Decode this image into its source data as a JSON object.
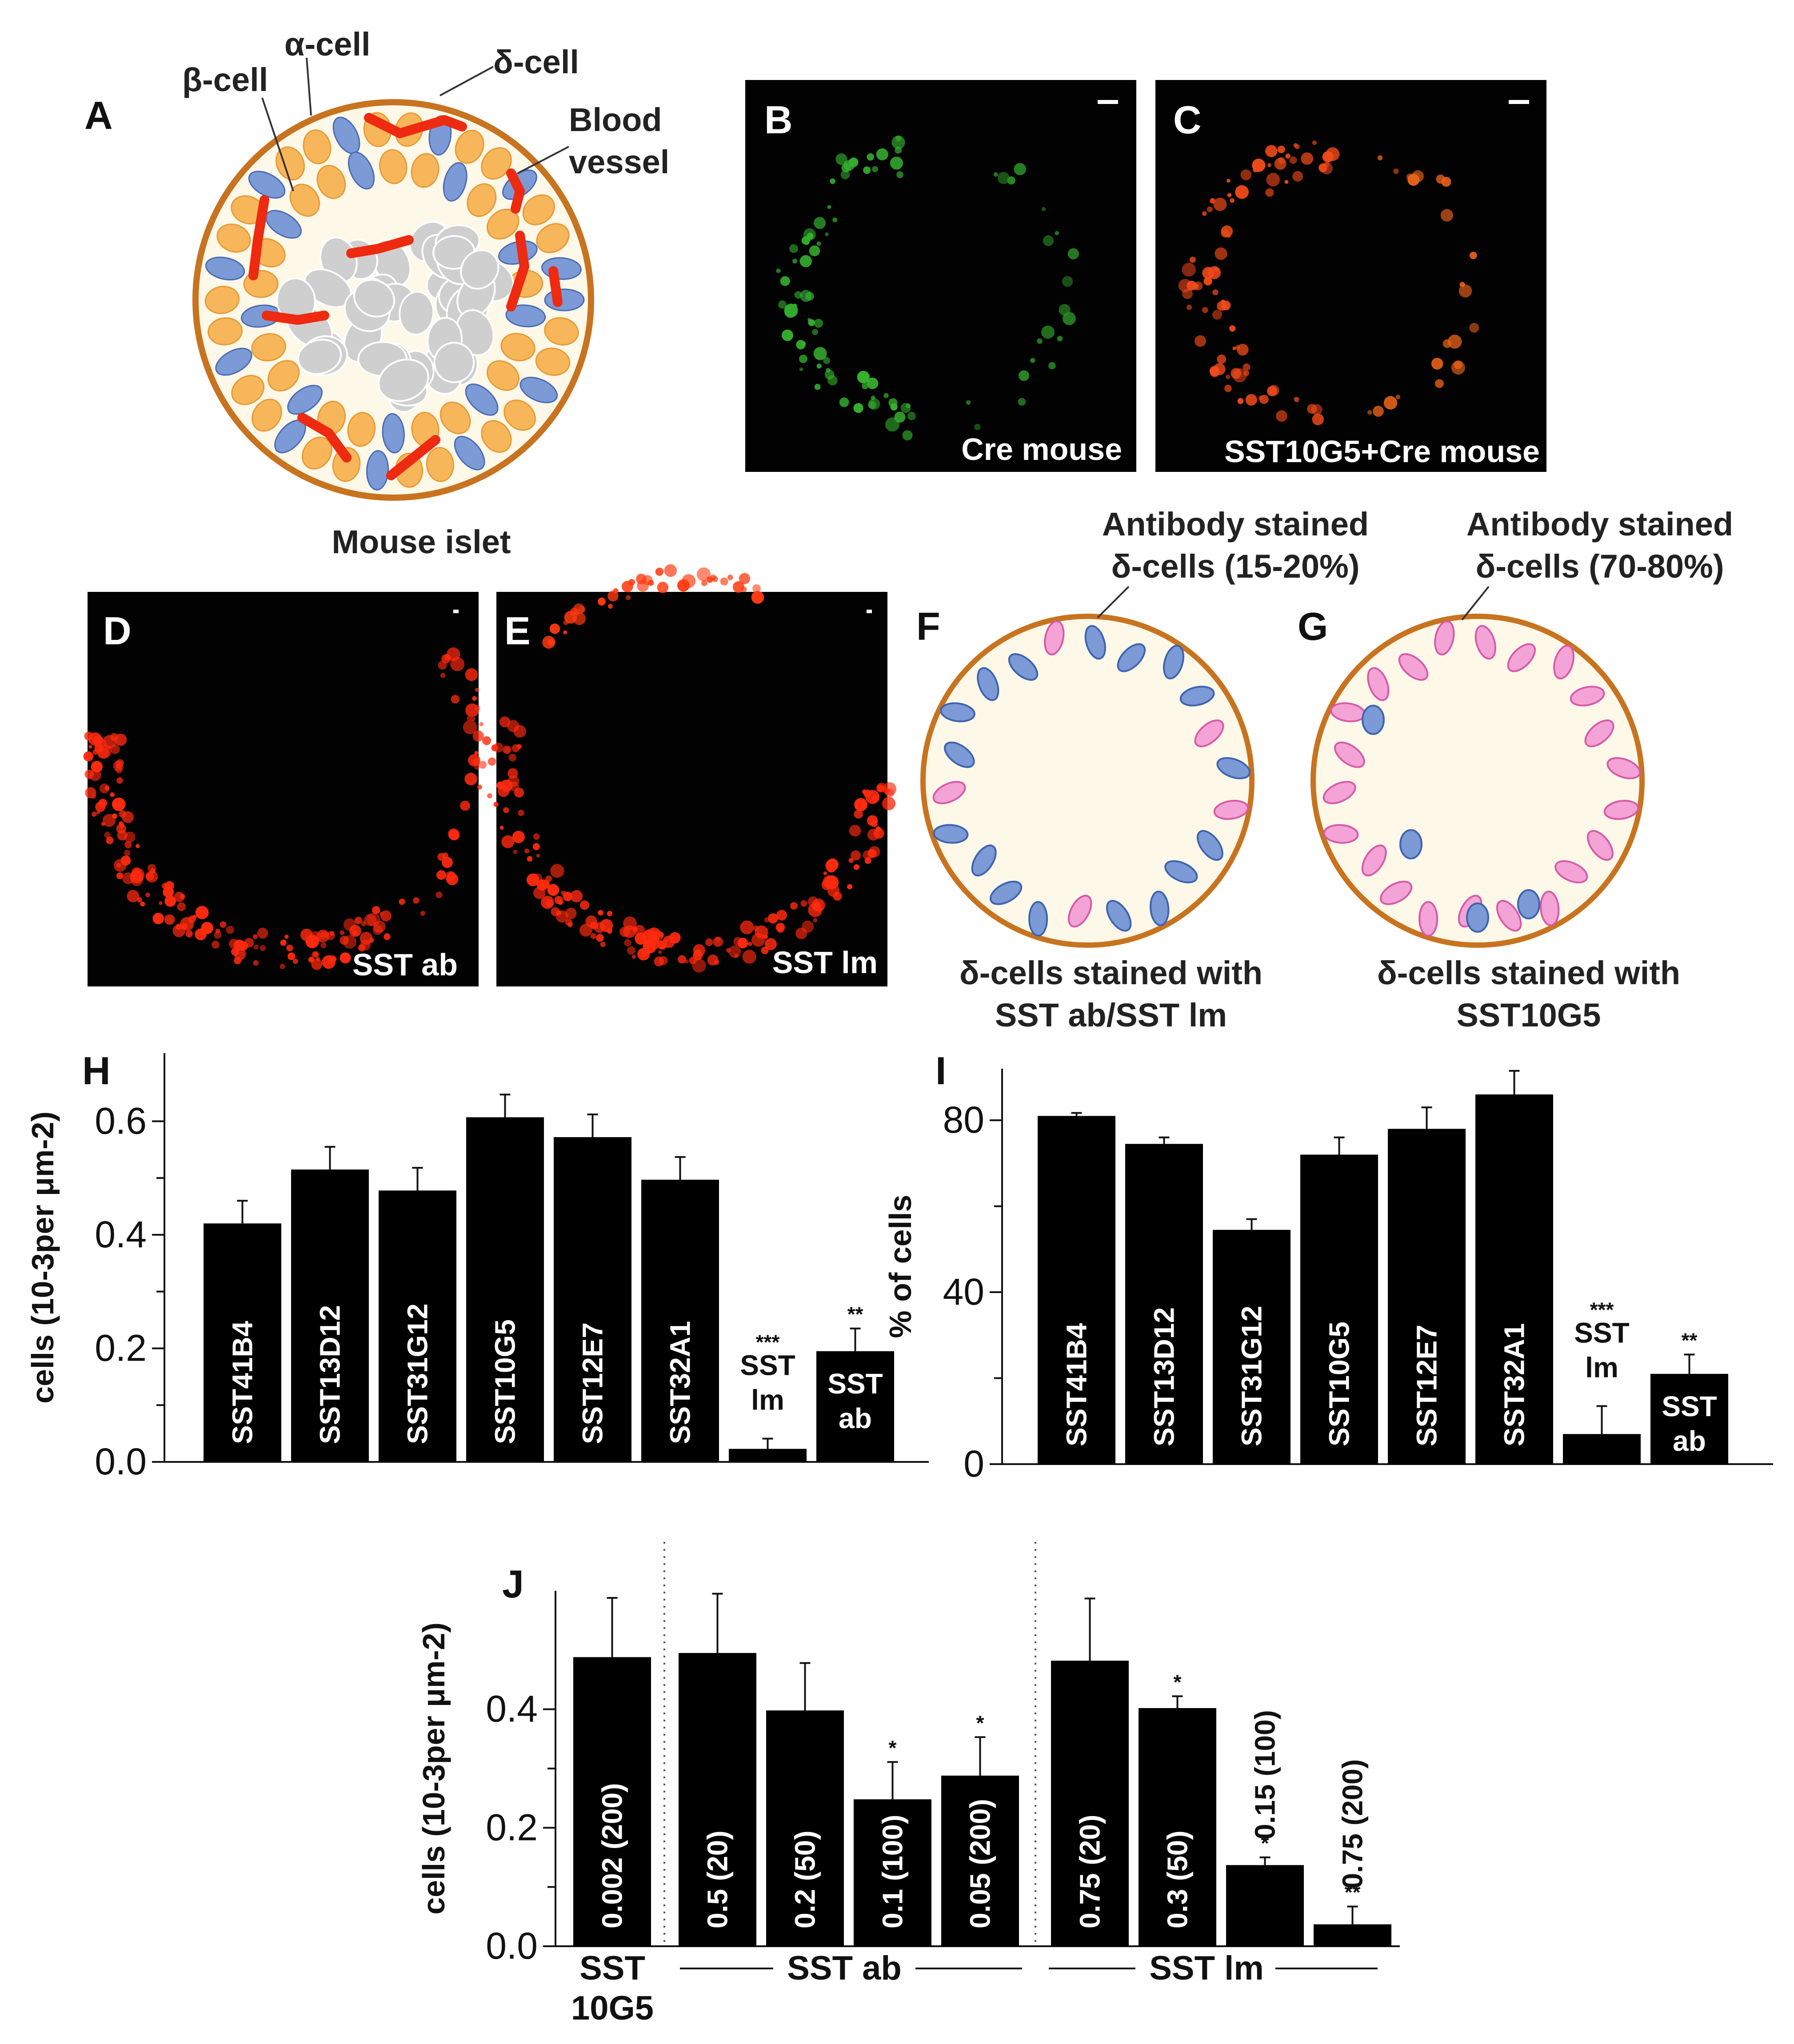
{
  "panels": {
    "A": {
      "letter": "A",
      "caption": "Mouse islet",
      "labels": {
        "beta": "β-cell",
        "alpha": "α-cell",
        "delta": "δ-cell",
        "vessel1": "Blood",
        "vessel2": "vessel"
      }
    },
    "B": {
      "letter": "B",
      "caption": "Cre mouse"
    },
    "C": {
      "letter": "C",
      "caption": "SST10G5+Cre mouse"
    },
    "D": {
      "letter": "D",
      "caption": "SST ab"
    },
    "E": {
      "letter": "E",
      "caption": "SST lm"
    },
    "F": {
      "letter": "F",
      "callout1": "Antibody stained",
      "callout2": "δ-cells (15-20%)",
      "caption1": "δ-cells stained with",
      "caption2": "SST ab/SST lm"
    },
    "G": {
      "letter": "G",
      "callout1": "Antibody stained",
      "callout2": "δ-cells (70-80%)",
      "caption1": "δ-cells stained with",
      "caption2": "SST10G5"
    }
  },
  "colors": {
    "islet_border": "#c8731f",
    "islet_fill": "#fdf8e8",
    "beta_cell": "#cfcfcf",
    "alpha_cell": "#f7b65a",
    "delta_cell": "#7b9ad6",
    "stained_delta": "#f4a3d6",
    "blood_vessel": "#ee2a10",
    "bar": "#000000"
  },
  "chart_data": [
    {
      "panel": "H",
      "type": "bar",
      "ylabel": "cells (10-3per μm-2)",
      "ylim": [
        0,
        0.72
      ],
      "yticks": [
        "0.0",
        "0.2",
        "0.4",
        "0.6"
      ],
      "categories": [
        "SST41B4",
        "SST13D12",
        "SST31G12",
        "SST10G5",
        "SST12E7",
        "SST32A1",
        "SST lm",
        "SST ab"
      ],
      "values": [
        0.42,
        0.515,
        0.478,
        0.607,
        0.572,
        0.497,
        0.023,
        0.195
      ],
      "errors": [
        0.04,
        0.04,
        0.04,
        0.04,
        0.04,
        0.04,
        0.018,
        0.04
      ],
      "significance": [
        "",
        "",
        "",
        "",
        "",
        "",
        "***",
        "**"
      ]
    },
    {
      "panel": "I",
      "type": "bar",
      "ylabel": "% of cells",
      "ylim": [
        0,
        92
      ],
      "yticks": [
        "0",
        "40",
        "80"
      ],
      "categories": [
        "SST41B4",
        "SST13D12",
        "SST31G12",
        "SST10G5",
        "SST12E7",
        "SST32A1",
        "SST lm",
        "SST ab"
      ],
      "values": [
        81,
        74.5,
        54.5,
        72,
        78,
        86,
        7,
        21
      ],
      "errors": [
        0.7,
        1.5,
        2.5,
        4,
        5,
        5.5,
        6.5,
        4.5
      ],
      "significance": [
        "",
        "",
        "",
        "",
        "",
        "",
        "***",
        "**"
      ]
    },
    {
      "panel": "J",
      "type": "bar",
      "ylabel": "cells (10-3per μm-2)",
      "ylim": [
        0,
        0.6
      ],
      "yticks": [
        "0.0",
        "0.2",
        "0.4"
      ],
      "categories": [
        "0.002 (200)",
        "0.5 (20)",
        "0.2 (50)",
        "0.1 (100)",
        "0.05 (200)",
        "0.75 (20)",
        "0.3 (50)",
        "0.15 (100)",
        "0.75 (200)"
      ],
      "values": [
        0.488,
        0.495,
        0.398,
        0.248,
        0.288,
        0.482,
        0.402,
        0.137,
        0.037
      ],
      "errors": [
        0.1,
        0.1,
        0.08,
        0.063,
        0.065,
        0.105,
        0.02,
        0.013,
        0.03
      ],
      "significance": [
        "",
        "",
        "",
        "*",
        "*",
        "",
        "*",
        "*",
        "**"
      ],
      "groups": [
        {
          "name1": "SST",
          "name2": "10G5"
        },
        {
          "name1": "SST ab",
          "name2": ""
        },
        {
          "name1": "SST lm",
          "name2": ""
        }
      ]
    }
  ],
  "chart_letters": {
    "H": "H",
    "I": "I",
    "J": "J"
  }
}
